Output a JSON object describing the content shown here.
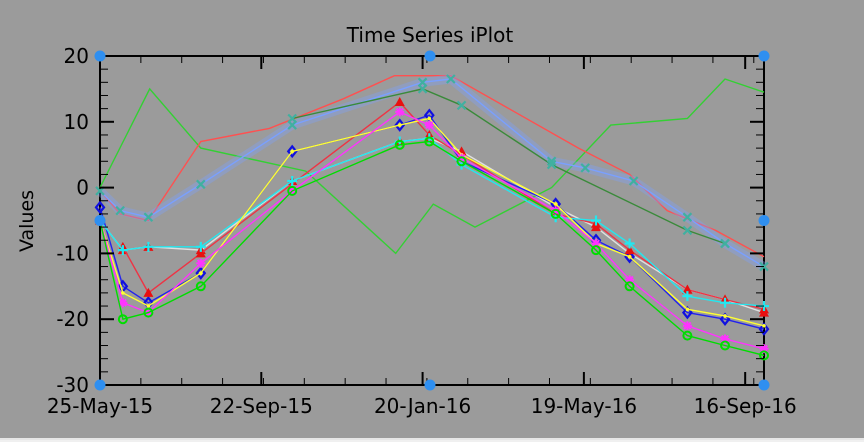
{
  "chart_data": {
    "type": "line",
    "title": "Time Series iPlot",
    "xlabel": "",
    "ylabel": "Values",
    "x_ticks": [
      "25-May-15",
      "22-Sep-15",
      "20-Jan-16",
      "19-May-16",
      "16-Sep-16"
    ],
    "x_tick_dates": [
      "2015-05-25",
      "2015-09-22",
      "2016-01-20",
      "2016-05-19",
      "2016-09-16"
    ],
    "xlim": [
      "2015-05-25",
      "2016-09-30"
    ],
    "ylim": [
      -30,
      20
    ],
    "y_ticks": [
      20,
      10,
      0,
      -10,
      -20,
      -30
    ],
    "background_color": "#9b9b9b",
    "selection_handle_color": "#2f8ff0",
    "grid": false,
    "series": [
      {
        "color": "#33d033",
        "marker": "none",
        "points": [
          [
            "2015-05-25",
            0
          ],
          [
            "2015-07-01",
            15
          ],
          [
            "2015-08-08",
            6
          ],
          [
            "2015-10-25",
            2.5
          ],
          [
            "2015-12-31",
            -10
          ],
          [
            "2016-01-28",
            -2.5
          ],
          [
            "2016-02-28",
            -6
          ],
          [
            "2016-04-25",
            0
          ],
          [
            "2016-06-08",
            9.5
          ],
          [
            "2016-08-04",
            10.5
          ],
          [
            "2016-09-01",
            16.5
          ],
          [
            "2016-09-30",
            14.5
          ]
        ]
      },
      {
        "color": "#ff5050",
        "marker": "none",
        "points": [
          [
            "2015-05-25",
            -0.5
          ],
          [
            "2015-06-09",
            -4
          ],
          [
            "2015-06-30",
            -5
          ],
          [
            "2015-08-08",
            7
          ],
          [
            "2015-09-28",
            9
          ],
          [
            "2015-11-22",
            13.5
          ],
          [
            "2015-12-30",
            17
          ],
          [
            "2016-02-10",
            17
          ],
          [
            "2016-05-15",
            6
          ],
          [
            "2016-06-22",
            2
          ],
          [
            "2016-07-20",
            -3.5
          ],
          [
            "2016-08-25",
            -6.5
          ],
          [
            "2016-09-30",
            -10.5
          ]
        ]
      },
      {
        "color": "#7aa0ff",
        "marker": "x",
        "points": [
          [
            "2015-05-25",
            -0.5
          ],
          [
            "2015-06-09",
            -3.5
          ],
          [
            "2015-06-30",
            -4.5
          ],
          [
            "2015-08-08",
            0.5
          ],
          [
            "2015-10-15",
            9.5
          ],
          [
            "2016-01-20",
            16
          ],
          [
            "2016-02-10",
            16.5
          ],
          [
            "2016-04-25",
            4
          ],
          [
            "2016-05-20",
            3
          ],
          [
            "2016-06-25",
            1
          ],
          [
            "2016-08-04",
            -4.5
          ],
          [
            "2016-09-01",
            -8.5
          ],
          [
            "2016-09-30",
            -12
          ]
        ]
      },
      {
        "color": "#3a8a3a",
        "marker": "x",
        "points": [
          [
            "2015-10-15",
            10.5
          ],
          [
            "2016-01-20",
            15
          ],
          [
            "2016-02-18",
            12.5
          ],
          [
            "2016-04-25",
            3.5
          ],
          [
            "2016-08-04",
            -6.5
          ],
          [
            "2016-09-01",
            -8.5
          ]
        ]
      },
      {
        "color": "#e0e0e0",
        "marker": "triangle",
        "points": [
          [
            "2015-05-25",
            -5
          ],
          [
            "2015-06-11",
            -9.5
          ],
          [
            "2015-06-30",
            -9
          ],
          [
            "2015-08-08",
            -9.5
          ],
          [
            "2015-10-15",
            1
          ],
          [
            "2016-01-03",
            7
          ],
          [
            "2016-01-25",
            7.5
          ],
          [
            "2016-02-18",
            5.5
          ],
          [
            "2016-04-28",
            -3
          ],
          [
            "2016-05-28",
            -6
          ],
          [
            "2016-06-22",
            -10
          ],
          [
            "2016-08-04",
            -15.5
          ],
          [
            "2016-09-01",
            -17
          ],
          [
            "2016-09-30",
            -19
          ]
        ]
      },
      {
        "color": "#2222ee",
        "marker": "diamond",
        "points": [
          [
            "2015-05-25",
            -3
          ],
          [
            "2015-06-11",
            -15
          ],
          [
            "2015-06-30",
            -17.5
          ],
          [
            "2015-08-08",
            -13
          ],
          [
            "2015-10-15",
            5.5
          ],
          [
            "2016-01-03",
            9.5
          ],
          [
            "2016-01-25",
            11
          ],
          [
            "2016-02-18",
            4
          ],
          [
            "2016-04-28",
            -2.5
          ],
          [
            "2016-05-28",
            -8
          ],
          [
            "2016-06-22",
            -10.5
          ],
          [
            "2016-08-04",
            -19
          ],
          [
            "2016-09-01",
            -20
          ],
          [
            "2016-09-30",
            -21.5
          ]
        ]
      },
      {
        "color": "#ee3344",
        "marker": "triangle",
        "points": [
          [
            "2015-06-11",
            -9
          ],
          [
            "2015-06-30",
            -16
          ],
          [
            "2015-08-08",
            -10
          ],
          [
            "2016-01-03",
            13
          ],
          [
            "2016-01-25",
            8
          ],
          [
            "2016-02-18",
            5
          ],
          [
            "2016-04-28",
            -4
          ],
          [
            "2016-05-28",
            -5.5
          ],
          [
            "2016-06-22",
            -9.5
          ],
          [
            "2016-08-04",
            -15.5
          ],
          [
            "2016-09-01",
            -17
          ],
          [
            "2016-09-30",
            -18.5
          ]
        ]
      },
      {
        "color": "#22e8f0",
        "marker": "plus",
        "points": [
          [
            "2015-05-25",
            -5
          ],
          [
            "2015-06-11",
            -9.5
          ],
          [
            "2015-06-30",
            -9
          ],
          [
            "2015-08-08",
            -9
          ],
          [
            "2015-10-15",
            1
          ],
          [
            "2016-01-03",
            7
          ],
          [
            "2016-01-25",
            7.5
          ],
          [
            "2016-02-18",
            3.5
          ],
          [
            "2016-04-28",
            -4.5
          ],
          [
            "2016-05-28",
            -5
          ],
          [
            "2016-06-22",
            -8.5
          ],
          [
            "2016-08-04",
            -16.5
          ],
          [
            "2016-09-01",
            -17.5
          ],
          [
            "2016-09-30",
            -18
          ]
        ]
      },
      {
        "color": "#ffff33",
        "marker": "dot",
        "points": [
          [
            "2015-05-25",
            -5
          ],
          [
            "2015-06-11",
            -16
          ],
          [
            "2015-06-30",
            -18
          ],
          [
            "2015-08-08",
            -13
          ],
          [
            "2015-10-15",
            5.5
          ],
          [
            "2016-01-03",
            9.5
          ],
          [
            "2016-01-25",
            10.5
          ],
          [
            "2016-02-18",
            5
          ],
          [
            "2016-04-28",
            -2.5
          ],
          [
            "2016-05-28",
            -8.5
          ],
          [
            "2016-06-22",
            -10.5
          ],
          [
            "2016-08-04",
            -18.5
          ],
          [
            "2016-09-01",
            -19.5
          ],
          [
            "2016-09-30",
            -21
          ]
        ]
      },
      {
        "color": "#ff33ff",
        "marker": "star",
        "points": [
          [
            "2015-05-25",
            -5
          ],
          [
            "2015-06-11",
            -17.5
          ],
          [
            "2015-06-30",
            -19
          ],
          [
            "2015-08-08",
            -11.5
          ],
          [
            "2015-10-15",
            -0.5
          ],
          [
            "2016-01-03",
            11.5
          ],
          [
            "2016-01-25",
            9.5
          ],
          [
            "2016-02-18",
            4.5
          ],
          [
            "2016-04-28",
            -3.5
          ],
          [
            "2016-05-28",
            -8.5
          ],
          [
            "2016-06-22",
            -14
          ],
          [
            "2016-08-04",
            -21
          ],
          [
            "2016-09-01",
            -23
          ],
          [
            "2016-09-30",
            -24.5
          ]
        ]
      },
      {
        "color": "#00dd00",
        "marker": "circle",
        "points": [
          [
            "2015-05-25",
            -5
          ],
          [
            "2015-06-11",
            -20
          ],
          [
            "2015-06-30",
            -19
          ],
          [
            "2015-08-08",
            -15
          ],
          [
            "2015-10-15",
            -0.5
          ],
          [
            "2016-01-03",
            6.5
          ],
          [
            "2016-01-25",
            7
          ],
          [
            "2016-02-18",
            4
          ],
          [
            "2016-04-28",
            -4
          ],
          [
            "2016-05-28",
            -9.5
          ],
          [
            "2016-06-22",
            -15
          ],
          [
            "2016-08-04",
            -22.5
          ],
          [
            "2016-09-01",
            -24
          ],
          [
            "2016-09-30",
            -25.5
          ]
        ]
      }
    ]
  }
}
